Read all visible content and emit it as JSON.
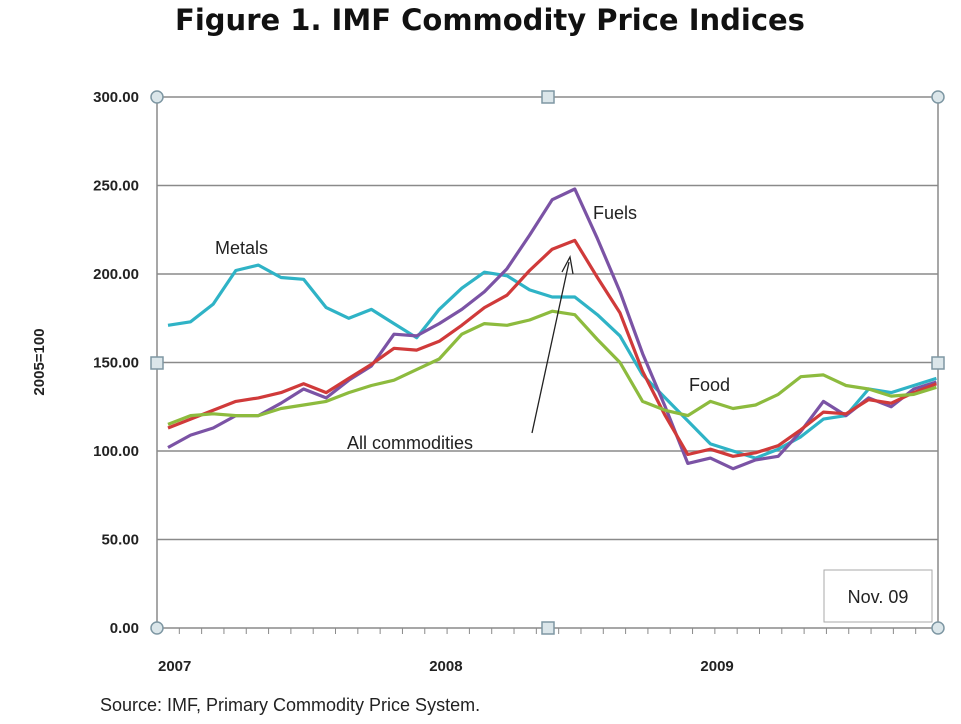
{
  "chart_data": {
    "type": "line",
    "title": "Figure 1. IMF Commodity Price Indices",
    "ylabel": "2005=100",
    "xlabel": "",
    "ylim": [
      0,
      300
    ],
    "yticks": [
      "0.00",
      "50.00",
      "100.00",
      "150.00",
      "200.00",
      "250.00",
      "300.00"
    ],
    "xtick_labels": [
      "2007",
      "2008",
      "2009"
    ],
    "x_start": "2007-01",
    "x_end": "2009-11",
    "frequency": "monthly",
    "grid": true,
    "end_label": "Nov. 09",
    "annotation_arrow_label": "All commodities",
    "source": "Source: IMF, Primary Commodity Price System.",
    "series": [
      {
        "name": "Metals",
        "color": "#2fb3c6",
        "values": [
          171,
          173,
          183,
          202,
          205,
          198,
          197,
          181,
          175,
          180,
          172,
          164,
          180,
          192,
          201,
          199,
          191,
          187,
          187,
          177,
          165,
          143,
          130,
          117,
          104,
          100,
          96,
          101,
          108,
          118,
          120,
          135,
          133,
          137,
          141
        ]
      },
      {
        "name": "Fuels",
        "color": "#7b53a5",
        "values": [
          102,
          109,
          113,
          120,
          120,
          127,
          135,
          130,
          140,
          148,
          166,
          165,
          172,
          180,
          190,
          203,
          222,
          242,
          248,
          220,
          190,
          155,
          125,
          93,
          96,
          90,
          95,
          97,
          111,
          128,
          120,
          130,
          125,
          135,
          139
        ]
      },
      {
        "name": "All commodities",
        "color": "#d03a3a",
        "values": [
          113,
          118,
          123,
          128,
          130,
          133,
          138,
          133,
          141,
          149,
          158,
          157,
          162,
          171,
          181,
          188,
          202,
          214,
          219,
          198,
          178,
          145,
          120,
          98,
          101,
          97,
          99,
          103,
          112,
          122,
          121,
          129,
          127,
          133,
          138
        ]
      },
      {
        "name": "Food",
        "color": "#8dbb3e",
        "values": [
          115,
          120,
          121,
          120,
          120,
          124,
          126,
          128,
          133,
          137,
          140,
          146,
          152,
          166,
          172,
          171,
          174,
          179,
          177,
          163,
          150,
          128,
          123,
          120,
          128,
          124,
          126,
          132,
          142,
          143,
          137,
          135,
          131,
          132,
          136
        ]
      }
    ]
  }
}
